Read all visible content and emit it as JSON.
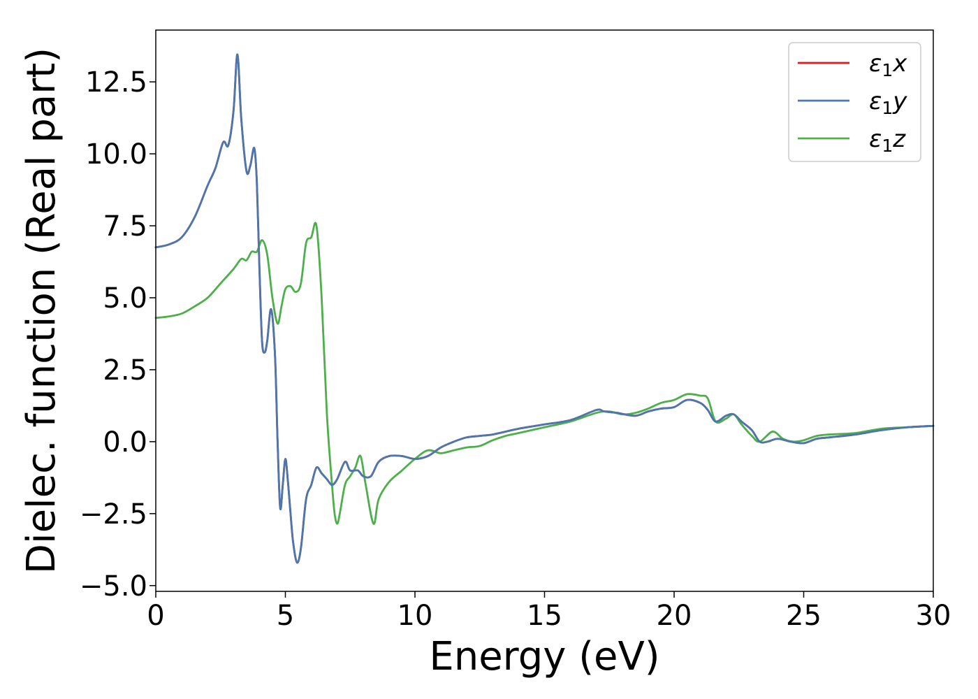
{
  "chart_data": {
    "type": "line",
    "xlabel": "Energy (eV)",
    "ylabel": "Dielec. function (Real part)",
    "xlim": [
      0,
      30
    ],
    "ylim": [
      -5.2,
      14.3
    ],
    "xticks": [
      0,
      5,
      10,
      15,
      20,
      25,
      30
    ],
    "xtick_labels": [
      "0",
      "5",
      "10",
      "15",
      "20",
      "25",
      "30"
    ],
    "yticks": [
      -5.0,
      -2.5,
      0.0,
      2.5,
      5.0,
      7.5,
      10.0,
      12.5
    ],
    "ytick_labels": [
      "−5.0",
      "−2.5",
      "0.0",
      "2.5",
      "5.0",
      "7.5",
      "10.0",
      "12.5"
    ],
    "grid": false,
    "legend_position": "top-right",
    "series": [
      {
        "name": "ε",
        "sub": "1",
        "suffix": "x",
        "color": "#e41a1c",
        "x": [
          0,
          0.5,
          1.0,
          1.5,
          2.0,
          2.3,
          2.6,
          2.8,
          3.0,
          3.15,
          3.3,
          3.5,
          3.65,
          3.8,
          3.9,
          4.0,
          4.1,
          4.2,
          4.3,
          4.45,
          4.6,
          4.7,
          4.8,
          4.9,
          5.0,
          5.1,
          5.2,
          5.3,
          5.45,
          5.6,
          5.8,
          6.0,
          6.2,
          6.4,
          6.6,
          6.8,
          7.0,
          7.3,
          7.5,
          7.8,
          8.0,
          8.3,
          8.6,
          9.0,
          9.5,
          10.0,
          10.5,
          11.0,
          11.5,
          12.0,
          12.5,
          13.0,
          13.5,
          14.0,
          15.0,
          16.0,
          17.0,
          17.3,
          17.8,
          18.5,
          19.0,
          19.5,
          20.0,
          20.5,
          21.0,
          21.3,
          21.6,
          22.0,
          22.3,
          22.6,
          23.0,
          23.3,
          23.6,
          24.0,
          24.5,
          25.0,
          25.5,
          26.0,
          27.0,
          28.0,
          29.0,
          30.0
        ],
        "y": [
          6.75,
          6.85,
          7.1,
          7.8,
          8.9,
          9.5,
          10.4,
          10.3,
          11.5,
          13.45,
          11.2,
          9.4,
          9.6,
          10.2,
          9.0,
          6.0,
          3.5,
          3.1,
          3.5,
          4.6,
          3.0,
          0.0,
          -2.3,
          -1.5,
          -0.6,
          -1.4,
          -2.5,
          -3.5,
          -4.2,
          -3.7,
          -2.0,
          -1.5,
          -0.9,
          -1.1,
          -1.3,
          -1.5,
          -1.3,
          -0.7,
          -1.0,
          -1.0,
          -1.2,
          -1.2,
          -0.7,
          -0.5,
          -0.5,
          -0.6,
          -0.5,
          -0.2,
          0.0,
          0.15,
          0.2,
          0.25,
          0.35,
          0.45,
          0.6,
          0.75,
          1.1,
          1.05,
          1.0,
          0.9,
          1.05,
          1.15,
          1.2,
          1.45,
          1.35,
          1.1,
          0.7,
          0.9,
          0.95,
          0.7,
          0.4,
          0.0,
          0.0,
          0.1,
          0.0,
          -0.05,
          0.1,
          0.15,
          0.25,
          0.4,
          0.5,
          0.55
        ]
      },
      {
        "name": "ε",
        "sub": "1",
        "suffix": "y",
        "color": "#4a77b0",
        "x": [
          0,
          0.5,
          1.0,
          1.5,
          2.0,
          2.3,
          2.6,
          2.8,
          3.0,
          3.15,
          3.3,
          3.5,
          3.65,
          3.8,
          3.9,
          4.0,
          4.1,
          4.2,
          4.3,
          4.45,
          4.6,
          4.7,
          4.8,
          4.9,
          5.0,
          5.1,
          5.2,
          5.3,
          5.45,
          5.6,
          5.8,
          6.0,
          6.2,
          6.4,
          6.6,
          6.8,
          7.0,
          7.3,
          7.5,
          7.8,
          8.0,
          8.3,
          8.6,
          9.0,
          9.5,
          10.0,
          10.5,
          11.0,
          11.5,
          12.0,
          12.5,
          13.0,
          13.5,
          14.0,
          15.0,
          16.0,
          17.0,
          17.3,
          17.8,
          18.5,
          19.0,
          19.5,
          20.0,
          20.5,
          21.0,
          21.3,
          21.6,
          22.0,
          22.3,
          22.6,
          23.0,
          23.3,
          23.6,
          24.0,
          24.5,
          25.0,
          25.5,
          26.0,
          27.0,
          28.0,
          29.0,
          30.0
        ],
        "y": [
          6.75,
          6.85,
          7.1,
          7.8,
          8.9,
          9.5,
          10.4,
          10.3,
          11.5,
          13.45,
          11.2,
          9.4,
          9.6,
          10.2,
          9.0,
          6.0,
          3.5,
          3.1,
          3.5,
          4.6,
          3.0,
          0.0,
          -2.3,
          -1.5,
          -0.6,
          -1.4,
          -2.5,
          -3.5,
          -4.2,
          -3.7,
          -2.0,
          -1.5,
          -0.9,
          -1.1,
          -1.3,
          -1.5,
          -1.3,
          -0.7,
          -1.0,
          -1.0,
          -1.2,
          -1.2,
          -0.7,
          -0.5,
          -0.5,
          -0.6,
          -0.5,
          -0.2,
          0.0,
          0.15,
          0.2,
          0.25,
          0.35,
          0.45,
          0.6,
          0.75,
          1.1,
          1.05,
          1.0,
          0.9,
          1.05,
          1.15,
          1.2,
          1.45,
          1.35,
          1.1,
          0.7,
          0.9,
          0.95,
          0.7,
          0.4,
          0.0,
          0.0,
          0.1,
          0.0,
          -0.05,
          0.1,
          0.15,
          0.25,
          0.4,
          0.5,
          0.55
        ]
      },
      {
        "name": "ε",
        "sub": "1",
        "suffix": "z",
        "color": "#4daf4a",
        "x": [
          0,
          0.5,
          1.0,
          1.5,
          2.0,
          2.5,
          3.0,
          3.3,
          3.5,
          3.7,
          3.9,
          4.1,
          4.3,
          4.5,
          4.7,
          4.85,
          5.0,
          5.2,
          5.4,
          5.6,
          5.8,
          6.0,
          6.2,
          6.4,
          6.6,
          6.8,
          6.9,
          7.0,
          7.1,
          7.3,
          7.5,
          7.7,
          7.9,
          8.1,
          8.4,
          8.6,
          9.0,
          9.5,
          10.0,
          10.5,
          11.0,
          11.5,
          12.0,
          12.5,
          13.0,
          13.5,
          14.0,
          15.0,
          16.0,
          17.0,
          17.5,
          18.0,
          18.5,
          19.0,
          19.5,
          20.0,
          20.5,
          21.0,
          21.3,
          21.6,
          22.0,
          22.3,
          22.6,
          23.0,
          23.3,
          23.8,
          24.2,
          24.6,
          25.0,
          25.5,
          26.0,
          27.0,
          28.0,
          29.0,
          30.0
        ],
        "y": [
          4.3,
          4.35,
          4.45,
          4.7,
          5.0,
          5.5,
          6.0,
          6.35,
          6.3,
          6.6,
          6.6,
          7.0,
          6.5,
          5.0,
          4.1,
          4.7,
          5.3,
          5.4,
          5.2,
          5.5,
          6.9,
          7.1,
          7.5,
          5.0,
          1.0,
          -1.5,
          -2.5,
          -2.85,
          -2.5,
          -1.5,
          -1.2,
          -0.9,
          -0.5,
          -1.5,
          -2.85,
          -2.0,
          -1.4,
          -1.0,
          -0.6,
          -0.3,
          -0.4,
          -0.3,
          -0.2,
          -0.15,
          0.05,
          0.2,
          0.3,
          0.5,
          0.7,
          1.0,
          1.05,
          0.95,
          1.0,
          1.15,
          1.35,
          1.45,
          1.65,
          1.6,
          1.5,
          0.7,
          0.8,
          0.95,
          0.6,
          0.2,
          0.0,
          0.35,
          0.1,
          0.0,
          0.05,
          0.2,
          0.25,
          0.3,
          0.45,
          0.5,
          0.55
        ]
      }
    ]
  }
}
